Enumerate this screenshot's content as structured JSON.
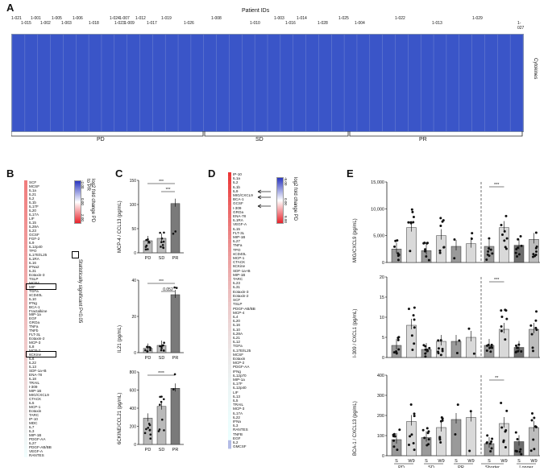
{
  "panelA": {
    "label": "A",
    "title": "Patient IDs",
    "cytokines_label": "Cytokines",
    "patient_ids": [
      "1-021",
      "1-015",
      "1-001",
      "1-002",
      "1-005",
      "1-003",
      "1-006",
      "1-018",
      "1-024",
      "1-023",
      "1-007",
      "1-009",
      "1-012",
      "1-017",
      "1-019",
      "1-026",
      "1-008",
      "1-010",
      "1-003",
      "1-016",
      "1-014",
      "1-028",
      "1-025",
      "1-004",
      "1-022",
      "1-013",
      "1-029",
      "1-027"
    ],
    "groups": [
      "PD",
      "SD",
      "PR"
    ]
  },
  "panelB": {
    "label": "B",
    "legend_title": "log2 fold change PD to PR",
    "scale": [
      "-2.00",
      "0.00",
      "2.00"
    ],
    "sig_label": "Statistically significant P<0.05",
    "cytokines": [
      "SCF",
      "MCSF",
      "IL1a",
      "IL21",
      "IL2",
      "IL1b",
      "IL17F",
      "IL20",
      "IL17A",
      "LIF",
      "IL15",
      "IL28A",
      "IL23",
      "GCSF",
      "FGF-2",
      "IL9",
      "IL12p40",
      "TPO",
      "IL17E/IL25",
      "IL1RA",
      "IL16",
      "IFNa2",
      "IL31",
      "Eotaxin-3",
      "TSLP",
      "MCP4",
      "MIF",
      "TGFa",
      "sCD40L",
      "IL10",
      "IFNg",
      "BCA-1",
      "Fractalkine",
      "MIP-1a",
      "EGF",
      "GROa",
      "TNFa",
      "TNFb",
      "FLT-3L",
      "Eotaxin-2",
      "MCP-3",
      "IL8",
      "MCP-2",
      "6CKine",
      "IL6",
      "IL22",
      "IL13",
      "SDF-1a+B",
      "ENA-78",
      "IL18",
      "TRAIL",
      "I-309",
      "MIP-1B",
      "MIG/CXCL9",
      "CTACK",
      "IL5",
      "MCP-1",
      "Eotaxin",
      "TARC",
      "IP-10",
      "MDC",
      "IL7",
      "IL3",
      "MIP-1B",
      "PDGF-AA",
      "IL27",
      "PDGF-AB/BB",
      "VEGF-A",
      "RANTES"
    ]
  },
  "panelC": {
    "label": "C",
    "charts": [
      {
        "ylabel": "MCP-4 / CCL13 (pg/mL)",
        "ticks": [
          "0",
          "50",
          "100",
          "150"
        ],
        "sig": [
          "***",
          "***"
        ]
      },
      {
        "ylabel": "IL21 (pg/mL)",
        "ticks": [
          "0",
          "20",
          "40"
        ],
        "sig": [
          "***",
          "0.052"
        ]
      },
      {
        "ylabel": "6CKINE/CCL21 (pg/mL)",
        "ticks": [
          "0",
          "200",
          "400",
          "600",
          "800"
        ],
        "sig": [
          "****"
        ]
      }
    ],
    "xcats": [
      "PD",
      "SD",
      "PR"
    ]
  },
  "chart_data": [
    {
      "type": "bar",
      "title": "MCP-4 / CCL13",
      "categories": [
        "PD",
        "SD",
        "PR"
      ],
      "values": [
        25,
        30,
        102
      ],
      "ylim": [
        0,
        150
      ],
      "ylabel": "MCP-4 / CCL13 (pg/mL)"
    },
    {
      "type": "bar",
      "title": "IL21",
      "categories": [
        "PD",
        "SD",
        "PR"
      ],
      "values": [
        3,
        5,
        40
      ],
      "ylim": [
        0,
        50
      ],
      "ylabel": "IL21 (pg/mL)"
    },
    {
      "type": "bar",
      "title": "6CKINE/CCL21",
      "categories": [
        "PD",
        "SD",
        "PR"
      ],
      "values": [
        290,
        420,
        620
      ],
      "ylim": [
        0,
        800
      ],
      "ylabel": "6CKINE/CCL21 (pg/mL)"
    },
    {
      "type": "bar",
      "title": "MIG/CXCL9",
      "categories": [
        "PD S",
        "PD W9",
        "SD S",
        "SD W9",
        "PR S",
        "PR W9",
        "Shorter S",
        "Shorter W9",
        "Longer S",
        "Longer W9"
      ],
      "values": [
        2500,
        6500,
        2200,
        5000,
        3000,
        3500,
        3000,
        6500,
        3200,
        4300
      ],
      "ylim": [
        0,
        15000
      ],
      "ylabel": "MIG/CXCL9 (pg/mL)"
    },
    {
      "type": "bar",
      "title": "I-309/CCL1",
      "categories": [
        "PD S",
        "PD W9",
        "SD S",
        "SD W9",
        "PR S",
        "PR W9",
        "Shorter S",
        "Shorter W9",
        "Longer S",
        "Longer W9"
      ],
      "values": [
        3,
        8,
        2,
        4,
        4,
        5,
        3,
        7,
        2.5,
        7
      ],
      "ylim": [
        0,
        20
      ],
      "ylabel": "I-309 / CXCL1 (pg/mL)"
    },
    {
      "type": "bar",
      "title": "BCA-1/CXCL13",
      "categories": [
        "PD S",
        "PD W9",
        "SD S",
        "SD W9",
        "PR S",
        "PR W9",
        "Shorter S",
        "Shorter W9",
        "Longer S",
        "Longer W9"
      ],
      "values": [
        80,
        170,
        90,
        140,
        180,
        190,
        60,
        160,
        70,
        140
      ],
      "ylim": [
        0,
        400
      ],
      "ylabel": "BCA-1 / CXCL13 (pg/mL)"
    }
  ],
  "panelD": {
    "label": "D",
    "legend_title": "log2 fold change PD",
    "scale": [
      "-8.00",
      "0.00",
      "8.00"
    ],
    "cytokines": [
      "IP-10",
      "IL1a",
      "IL2",
      "IL1b",
      "IL9",
      "MIG/CXCL9",
      "BCA-1",
      "GCSF",
      "I-309",
      "GROa",
      "ENA-78",
      "IL1RA",
      "VEGF-A",
      "IL15",
      "FLT-3L",
      "MIP-1B",
      "IL27",
      "TNFa",
      "TPO",
      "sCD40L",
      "MCP-1",
      "CTACK",
      "6CKine",
      "SDF-1a+B",
      "MIP-1B",
      "TARC",
      "IL23",
      "IL31",
      "Eotaxin-3",
      "Eotaxin-2",
      "SCF",
      "TSLP",
      "PDGF-AB/BB",
      "MCP-4",
      "IL4",
      "IL20",
      "IL16",
      "IL10",
      "IL28A",
      "IL21",
      "IL12",
      "TGFa",
      "IL17E/IL25",
      "MCSF",
      "Eotaxin",
      "MCP-2",
      "PDGF-AA",
      "IFNg",
      "IL12p70",
      "MIP-1a",
      "IL17F",
      "IL12p40",
      "LIF",
      "IL13",
      "IL5",
      "TRAIL",
      "MCP-3",
      "IL17A",
      "IL22",
      "IFNa",
      "IL3",
      "RANTES",
      "TNFB",
      "EGF",
      "IL2",
      "GMCSF"
    ]
  },
  "panelE": {
    "label": "E",
    "charts": [
      {
        "ylabel": "MIG/CXCL9 (pg/mL)",
        "ticks": [
          "0",
          "5,000",
          "10,000",
          "15,000"
        ],
        "sig": "***"
      },
      {
        "ylabel": "I-309 / CXCL1 (pg/mL)",
        "ticks": [
          "0",
          "5",
          "10",
          "15",
          "20"
        ],
        "sig": "***"
      },
      {
        "ylabel": "BCA-1 / CXCL13 (pg/mL)",
        "ticks": [
          "0",
          "100",
          "200",
          "300",
          "400"
        ],
        "sig": "**"
      }
    ],
    "xcats": [
      "S",
      "W9",
      "S",
      "W9",
      "S",
      "W9",
      "S",
      "W9",
      "S",
      "W9"
    ],
    "groups": [
      "PD",
      "SD",
      "PR",
      "Shorter survival",
      "Longer survival"
    ]
  }
}
